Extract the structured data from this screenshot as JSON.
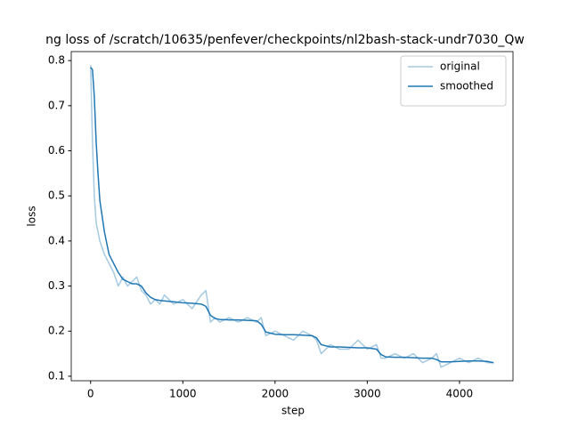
{
  "chart_data": {
    "type": "line",
    "title": "ng loss of /scratch/10635/penfever/checkpoints/nl2bash-stack-undr7030_Qw",
    "x_label": "step",
    "y_label": "loss",
    "x": [
      0,
      20,
      40,
      60,
      80,
      100,
      150,
      200,
      250,
      300,
      350,
      400,
      450,
      500,
      550,
      600,
      650,
      700,
      750,
      800,
      900,
      1000,
      1100,
      1200,
      1250,
      1300,
      1350,
      1400,
      1500,
      1600,
      1700,
      1800,
      1850,
      1900,
      2000,
      2100,
      2200,
      2300,
      2400,
      2450,
      2500,
      2600,
      2700,
      2800,
      2900,
      3000,
      3100,
      3150,
      3200,
      3300,
      3400,
      3500,
      3600,
      3700,
      3750,
      3800,
      3900,
      4000,
      4100,
      4200,
      4300,
      4370
    ],
    "series": [
      {
        "name": "original",
        "color": "#a5c9e1",
        "values": [
          0.79,
          0.62,
          0.5,
          0.44,
          0.42,
          0.4,
          0.37,
          0.35,
          0.33,
          0.3,
          0.32,
          0.3,
          0.31,
          0.32,
          0.29,
          0.28,
          0.26,
          0.27,
          0.26,
          0.28,
          0.26,
          0.27,
          0.25,
          0.28,
          0.29,
          0.22,
          0.23,
          0.22,
          0.23,
          0.22,
          0.23,
          0.22,
          0.23,
          0.19,
          0.2,
          0.19,
          0.18,
          0.2,
          0.19,
          0.18,
          0.15,
          0.17,
          0.16,
          0.16,
          0.18,
          0.16,
          0.17,
          0.14,
          0.14,
          0.15,
          0.14,
          0.15,
          0.13,
          0.14,
          0.15,
          0.12,
          0.13,
          0.14,
          0.13,
          0.14,
          0.13,
          0.13
        ]
      },
      {
        "name": "smoothed",
        "color": "#1f77b4",
        "values": [
          0.785,
          0.78,
          0.72,
          0.62,
          0.55,
          0.49,
          0.42,
          0.37,
          0.35,
          0.33,
          0.315,
          0.31,
          0.305,
          0.305,
          0.3,
          0.285,
          0.275,
          0.27,
          0.268,
          0.267,
          0.265,
          0.263,
          0.262,
          0.26,
          0.255,
          0.235,
          0.228,
          0.226,
          0.225,
          0.225,
          0.224,
          0.223,
          0.215,
          0.198,
          0.193,
          0.192,
          0.192,
          0.191,
          0.19,
          0.185,
          0.17,
          0.165,
          0.165,
          0.164,
          0.163,
          0.163,
          0.16,
          0.148,
          0.143,
          0.142,
          0.142,
          0.141,
          0.14,
          0.14,
          0.137,
          0.132,
          0.132,
          0.133,
          0.134,
          0.134,
          0.133,
          0.13
        ]
      }
    ],
    "xlim": [
      -210,
      4580
    ],
    "ylim": [
      0.09,
      0.82
    ],
    "xticks": [
      0,
      1000,
      2000,
      3000,
      4000
    ],
    "yticks": [
      0.1,
      0.2,
      0.3,
      0.4,
      0.5,
      0.6,
      0.7,
      0.8
    ],
    "legend": "upper right"
  }
}
